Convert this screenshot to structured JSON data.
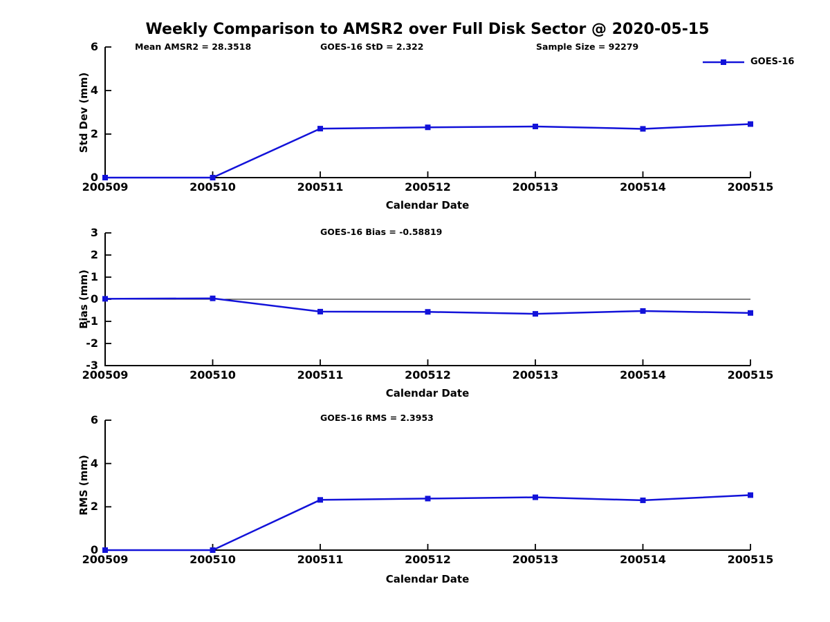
{
  "title": "Weekly Comparison to AMSR2 over Full Disk Sector @ 2020-05-15",
  "legend": {
    "label": "GOES-16",
    "color": "#1212d9"
  },
  "xlabel": "Calendar Date",
  "categories": [
    "200509",
    "200510",
    "200511",
    "200512",
    "200513",
    "200514",
    "200515"
  ],
  "chart_data": [
    {
      "type": "line",
      "name": "std-dev-panel",
      "ylabel": "Std Dev (mm)",
      "ylim": [
        0,
        6
      ],
      "yticks": [
        0,
        2,
        4,
        6
      ],
      "grid": false,
      "legend_position": "top-right",
      "annotations": [
        "Mean AMSR2 = 28.3518",
        "GOES-16 StD = 2.322",
        "Sample Size = 92279"
      ],
      "series": [
        {
          "name": "GOES-16",
          "color": "#1212d9",
          "values": [
            0.0,
            0.0,
            2.25,
            2.31,
            2.35,
            2.24,
            2.46
          ]
        }
      ]
    },
    {
      "type": "line",
      "name": "bias-panel",
      "ylabel": "Bias (mm)",
      "ylim": [
        -3,
        3
      ],
      "yticks": [
        3,
        2,
        1,
        0,
        -1,
        -2,
        -3
      ],
      "grid": false,
      "zero_line": true,
      "annotations": [
        "GOES-16 Bias  = -0.58819"
      ],
      "series": [
        {
          "name": "GOES-16",
          "color": "#1212d9",
          "values": [
            0.02,
            0.04,
            -0.56,
            -0.57,
            -0.66,
            -0.53,
            -0.62
          ]
        }
      ]
    },
    {
      "type": "line",
      "name": "rms-panel",
      "ylabel": "RMS (mm)",
      "ylim": [
        0,
        6
      ],
      "yticks": [
        0,
        2,
        4,
        6
      ],
      "grid": false,
      "annotations": [
        "GOES-16 RMS = 2.3953"
      ],
      "series": [
        {
          "name": "GOES-16",
          "color": "#1212d9",
          "values": [
            0.0,
            0.0,
            2.32,
            2.38,
            2.44,
            2.3,
            2.54
          ]
        }
      ]
    }
  ]
}
